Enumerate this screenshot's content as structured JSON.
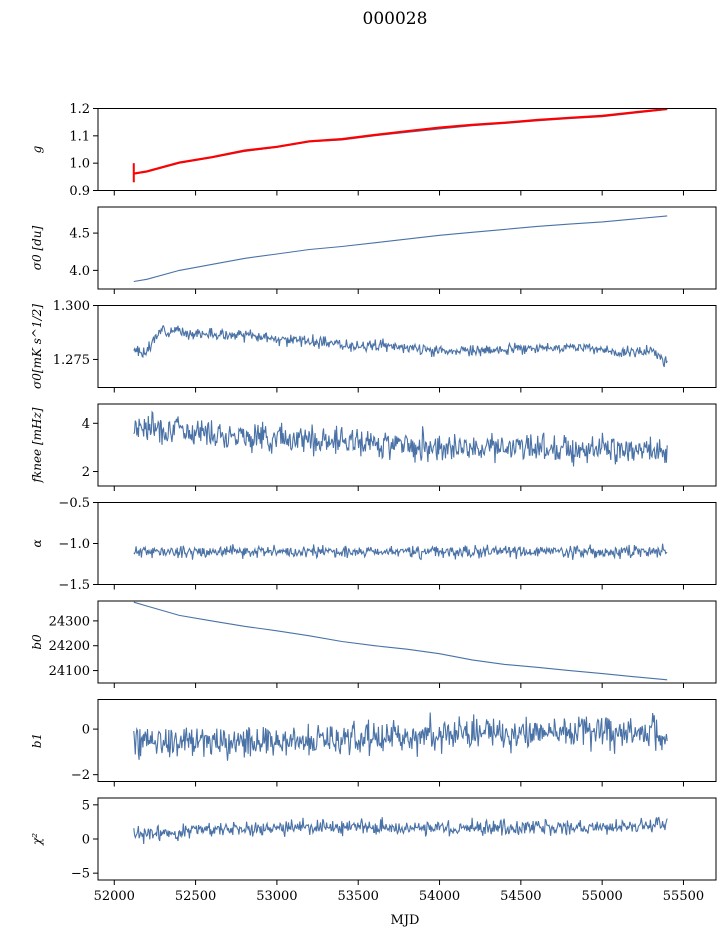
{
  "figure_title": "000028",
  "x_axis_label": "MJD",
  "colors": {
    "series": "#4a72a6",
    "fit": "#ff0000",
    "axes": "#000000"
  },
  "chart_data": {
    "type": "line",
    "title": "000028",
    "xlabel": "MJD",
    "xlim": [
      51900,
      55700
    ],
    "x_ticks": [
      52000,
      52500,
      53000,
      53500,
      54000,
      54500,
      55000,
      55500
    ],
    "x_tick_labels": [
      "52000",
      "52500",
      "53000",
      "53500",
      "54000",
      "54500",
      "55000",
      "55500"
    ],
    "x_range": [
      52120,
      55400
    ],
    "panels": [
      {
        "ylabel": "g",
        "ylim": [
          0.9,
          1.2
        ],
        "y_ticks": [
          0.9,
          1.0,
          1.1,
          1.2
        ],
        "y_tick_labels": [
          "0.9",
          "1.0",
          "1.1",
          "1.2"
        ],
        "series": [
          {
            "style": "line",
            "color": "#4a72a6",
            "x": [
              52120,
              52200,
              52400,
              52600,
              52800,
              53000,
              53200,
              53400,
              53600,
              53800,
              54000,
              54200,
              54400,
              54600,
              54800,
              55000,
              55200,
              55400
            ],
            "values": [
              0.96,
              0.968,
              1.0,
              1.02,
              1.043,
              1.058,
              1.078,
              1.085,
              1.1,
              1.113,
              1.125,
              1.137,
              1.145,
              1.155,
              1.163,
              1.17,
              1.183,
              1.197
            ]
          },
          {
            "style": "line",
            "color": "#ff0000",
            "x": [
              52120,
              52200,
              52400,
              52600,
              52800,
              53000,
              53200,
              53400,
              53600,
              53800,
              54000,
              54200,
              54400,
              54600,
              54800,
              55000,
              55200,
              55400
            ],
            "values": [
              0.962,
              0.97,
              1.002,
              1.022,
              1.046,
              1.06,
              1.08,
              1.088,
              1.103,
              1.117,
              1.13,
              1.14,
              1.148,
              1.158,
              1.166,
              1.173,
              1.186,
              1.198
            ]
          }
        ],
        "errorbar": {
          "x": 52120,
          "low": 0.93,
          "high": 1.0,
          "color": "#ff0000"
        }
      },
      {
        "ylabel": "σ0 [du]",
        "ylim": [
          3.75,
          4.85
        ],
        "y_ticks": [
          4.0,
          4.5
        ],
        "y_tick_labels": [
          "4.0",
          "4.5"
        ],
        "series": [
          {
            "style": "line",
            "color": "#4a72a6",
            "x": [
              52120,
              52200,
              52400,
              52600,
              52800,
              53000,
              53200,
              53400,
              53600,
              53800,
              54000,
              54200,
              54400,
              54600,
              54800,
              55000,
              55200,
              55400
            ],
            "values": [
              3.85,
              3.88,
              4.0,
              4.08,
              4.16,
              4.22,
              4.28,
              4.32,
              4.37,
              4.42,
              4.47,
              4.51,
              4.55,
              4.59,
              4.62,
              4.65,
              4.69,
              4.73
            ]
          }
        ]
      },
      {
        "ylabel": "σ0[mK s^1/2]",
        "ylim": [
          1.262,
          1.3
        ],
        "y_ticks": [
          1.275,
          1.3
        ],
        "y_tick_labels": [
          "1.275",
          "1.300"
        ],
        "series": [
          {
            "style": "noisy",
            "color": "#4a72a6",
            "seed": 3,
            "noise": 0.0016,
            "x": [
              52120,
              52200,
              52250,
              52300,
              52500,
              52800,
              53100,
              53400,
              53700,
              54000,
              54300,
              54600,
              54900,
              55100,
              55300,
              55400
            ],
            "values": [
              1.279,
              1.278,
              1.285,
              1.289,
              1.287,
              1.286,
              1.284,
              1.282,
              1.281,
              1.279,
              1.279,
              1.28,
              1.281,
              1.278,
              1.279,
              1.274
            ]
          }
        ]
      },
      {
        "ylabel": "fknee [mHz]",
        "ylim": [
          1.4,
          4.8
        ],
        "y_ticks": [
          2,
          4
        ],
        "y_tick_labels": [
          "2",
          "4"
        ],
        "series": [
          {
            "style": "noisy",
            "color": "#4a72a6",
            "seed": 7,
            "noise": 0.36,
            "x": [
              52120,
              52300,
              52600,
              53000,
              53500,
              54000,
              54500,
              55000,
              55400
            ],
            "values": [
              3.9,
              3.8,
              3.6,
              3.4,
              3.2,
              3.05,
              3.0,
              2.95,
              2.8
            ]
          }
        ]
      },
      {
        "ylabel": "α",
        "ylim": [
          -1.5,
          -0.5
        ],
        "y_ticks": [
          -1.5,
          -1.0,
          -0.5
        ],
        "y_tick_labels": [
          "−1.5",
          "−1.0",
          "−0.5"
        ],
        "series": [
          {
            "style": "noisy",
            "color": "#4a72a6",
            "seed": 11,
            "noise": 0.045,
            "x": [
              52120,
              53000,
              54000,
              55000,
              55400
            ],
            "values": [
              -1.1,
              -1.1,
              -1.1,
              -1.1,
              -1.1
            ]
          }
        ]
      },
      {
        "ylabel": "b0",
        "ylim": [
          24050,
          24380
        ],
        "y_ticks": [
          24100,
          24200,
          24300
        ],
        "y_tick_labels": [
          "24100",
          "24200",
          "24300"
        ],
        "series": [
          {
            "style": "line",
            "color": "#4a72a6",
            "x": [
              52120,
              52200,
              52400,
              52600,
              52800,
              53000,
              53200,
              53400,
              53600,
              53800,
              54000,
              54200,
              54400,
              54600,
              54800,
              55000,
              55200,
              55400
            ],
            "values": [
              24375,
              24360,
              24322,
              24300,
              24278,
              24260,
              24240,
              24217,
              24200,
              24186,
              24168,
              24143,
              24125,
              24113,
              24100,
              24088,
              24075,
              24063
            ]
          }
        ]
      },
      {
        "ylabel": "b1",
        "ylim": [
          -2.3,
          1.3
        ],
        "y_ticks": [
          -2,
          0
        ],
        "y_tick_labels": [
          "−2",
          "0"
        ],
        "series": [
          {
            "style": "noisy",
            "color": "#4a72a6",
            "seed": 19,
            "noise": 0.45,
            "x": [
              52120,
              52800,
              53500,
              54200,
              54800,
              55400
            ],
            "values": [
              -0.5,
              -0.55,
              -0.4,
              -0.15,
              -0.05,
              -0.2
            ]
          }
        ]
      },
      {
        "ylabel": "χ²",
        "ylim": [
          -6,
          6
        ],
        "y_ticks": [
          -5,
          0,
          5
        ],
        "y_tick_labels": [
          "−5",
          "0",
          "5"
        ],
        "series": [
          {
            "style": "noisy",
            "color": "#4a72a6",
            "seed": 23,
            "noise": 0.7,
            "x": [
              52120,
              52600,
              53200,
              53800,
              54400,
              55000,
              55400
            ],
            "values": [
              0.5,
              1.5,
              1.7,
              1.7,
              1.6,
              1.6,
              2.0
            ]
          }
        ]
      }
    ]
  }
}
